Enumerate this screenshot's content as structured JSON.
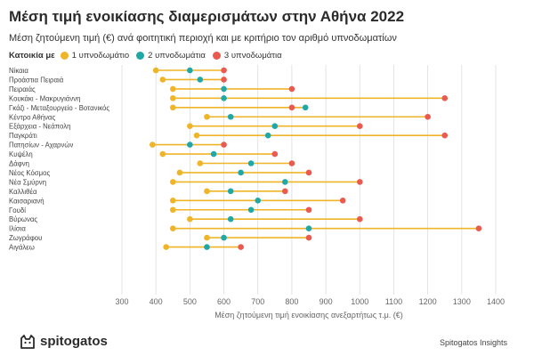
{
  "header": {
    "title": "Μέση τιμή ενοικίασης διαμερισμάτων στην Αθήνα 2022",
    "subtitle": "Μέση ζητούμενη τιμή (€) ανά φοιτητική περιοχή και με κριτήριο τον αριθμό υπνοδωματίων"
  },
  "legend": {
    "title": "Κατοικία με",
    "items": [
      {
        "label": "1 υπνοδωμάτιο",
        "color": "#f0b429"
      },
      {
        "label": "2 υπνοδωμάτια",
        "color": "#1fa8a8"
      },
      {
        "label": "3 υπνοδωμάτια",
        "color": "#ea5a4f"
      }
    ]
  },
  "footer": {
    "logo": "spitogatos",
    "source": "Spitogatos Insights"
  },
  "colors": {
    "line": "#f0b429",
    "grid": "#dddddd",
    "one": "#f0b429",
    "two": "#1fa8a8",
    "three": "#ea5a4f"
  },
  "chart_data": {
    "type": "dumbbell",
    "xlabel": "Μέση ζητούμενη τιμή ενοικίασης ανεξαρτήτως τ.μ. (€)",
    "xlim": [
      300,
      1400
    ],
    "xticks": [
      300,
      400,
      500,
      600,
      700,
      800,
      900,
      1000,
      1100,
      1200,
      1300,
      1400
    ],
    "grid": true,
    "legend_position": "top-left",
    "categories": [
      "Νίκαια",
      "Προάστια Πειραιά",
      "Πειραιάς",
      "Κουκάκι - Μακρυγιάννη",
      "Γκάζι - Μεταξουργείο - Βοτανικός",
      "Κέντρο Αθήνας",
      "Εξάρχεια - Νεάπολη",
      "Παγκράτι",
      "Πατησίων - Αχαρνών",
      "Κυψέλη",
      "Δάφνη",
      "Νέος Κόσμος",
      "Νέα Σμύρνη",
      "Καλλιθέα",
      "Καισαριανή",
      "Γουδί",
      "Βύρωνας",
      "Ιλίσια",
      "Ζωγράφου",
      "Αιγάλεω"
    ],
    "series": [
      {
        "name": "1 υπνοδωμάτιο",
        "values": [
          400,
          420,
          450,
          450,
          450,
          550,
          500,
          520,
          390,
          420,
          530,
          470,
          450,
          550,
          450,
          450,
          500,
          450,
          550,
          430
        ]
      },
      {
        "name": "2 υπνοδωμάτια",
        "values": [
          500,
          530,
          600,
          600,
          840,
          620,
          750,
          730,
          500,
          570,
          680,
          650,
          780,
          620,
          700,
          680,
          620,
          850,
          600,
          550
        ]
      },
      {
        "name": "3 υπνοδωμάτια",
        "values": [
          600,
          600,
          800,
          1250,
          800,
          1200,
          1000,
          1250,
          600,
          750,
          800,
          850,
          1000,
          780,
          950,
          850,
          1000,
          1350,
          850,
          650
        ]
      }
    ]
  }
}
